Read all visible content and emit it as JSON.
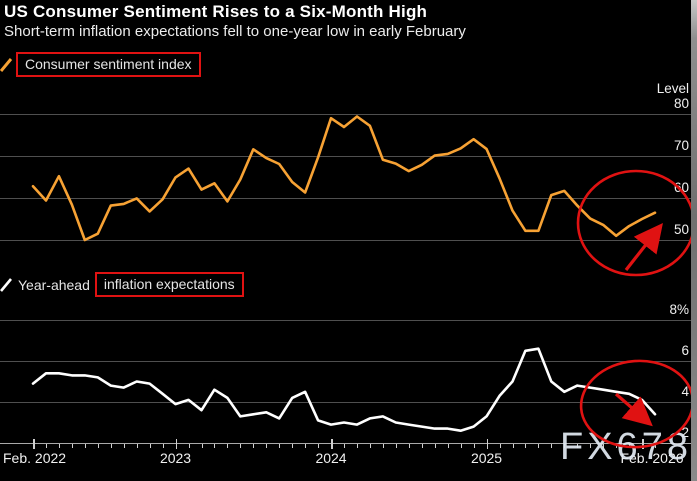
{
  "header": {
    "title": "US Consumer Sentiment Rises to a Six-Month High",
    "subtitle": "Short-term inflation expectations fell to one-year low in early February"
  },
  "legends": {
    "sentiment": "Consumer sentiment index",
    "inflation_prefix": "Year-ahead",
    "inflation_boxed": "inflation expectations"
  },
  "watermark": "FX678",
  "colors": {
    "background": "#000000",
    "sentiment_line": "#F7A234",
    "inflation_line": "#FFFFFF",
    "annotation_red": "#E01212",
    "gridline": "#4F4F4F",
    "text": "#FFFFFF",
    "watermark": "#E2EAF3"
  },
  "axis": {
    "x_labels": [
      "Feb. 2022",
      "2023",
      "2024",
      "2025",
      "Feb. 2026"
    ],
    "x_range": [
      "Feb 2022",
      "Feb 2026"
    ],
    "frequency": "monthly"
  },
  "chart_data": [
    {
      "type": "line",
      "name": "Consumer sentiment index",
      "ylabel": "Level",
      "color": "#F7A234",
      "ylim": [
        45,
        82
      ],
      "yticks": [
        80,
        70,
        60,
        50
      ],
      "ytick_labels": [
        "80",
        "70",
        "60",
        "50"
      ],
      "grid": true,
      "legend_position": "top-left",
      "x": [
        "Feb 2022",
        "Mar 2022",
        "Apr 2022",
        "May 2022",
        "Jun 2022",
        "Jul 2022",
        "Aug 2022",
        "Sep 2022",
        "Oct 2022",
        "Nov 2022",
        "Dec 2022",
        "Jan 2023",
        "Feb 2023",
        "Mar 2023",
        "Apr 2023",
        "May 2023",
        "Jun 2023",
        "Jul 2023",
        "Aug 2023",
        "Sep 2023",
        "Oct 2023",
        "Nov 2023",
        "Dec 2023",
        "Jan 2024",
        "Feb 2024",
        "Mar 2024",
        "Apr 2024",
        "May 2024",
        "Jun 2024",
        "Jul 2024",
        "Aug 2024",
        "Sep 2024",
        "Oct 2024",
        "Nov 2024",
        "Dec 2024",
        "Jan 2025",
        "Feb 2025",
        "Mar 2025",
        "Apr 2025",
        "May 2025",
        "Jun 2025",
        "Jul 2025",
        "Aug 2025",
        "Sep 2025",
        "Oct 2025",
        "Nov 2025",
        "Dec 2025",
        "Jan 2026",
        "Feb 2026"
      ],
      "values": [
        62.8,
        59.4,
        65.2,
        58.4,
        50.0,
        51.5,
        58.2,
        58.6,
        59.9,
        56.8,
        59.7,
        64.9,
        67.0,
        62.0,
        63.5,
        59.2,
        64.4,
        71.6,
        69.5,
        68.1,
        63.8,
        61.3,
        69.7,
        79.0,
        76.9,
        79.4,
        77.2,
        69.1,
        68.2,
        66.4,
        67.9,
        70.1,
        70.5,
        71.8,
        74.0,
        71.7,
        64.7,
        57.0,
        52.2,
        52.2,
        60.7,
        61.7,
        58.2,
        55.1,
        53.6,
        51.0,
        53.3,
        55.0,
        56.5
      ]
    },
    {
      "type": "line",
      "name": "Year-ahead inflation expectations",
      "ylabel": "%",
      "color": "#FFFFFF",
      "ylim": [
        2,
        8.5
      ],
      "yticks": [
        8,
        6,
        4,
        2
      ],
      "ytick_labels": [
        "8%",
        "6",
        "4",
        "2"
      ],
      "grid": true,
      "legend_position": "top-left",
      "x": [
        "Feb 2022",
        "Mar 2022",
        "Apr 2022",
        "May 2022",
        "Jun 2022",
        "Jul 2022",
        "Aug 2022",
        "Sep 2022",
        "Oct 2022",
        "Nov 2022",
        "Dec 2022",
        "Jan 2023",
        "Feb 2023",
        "Mar 2023",
        "Apr 2023",
        "May 2023",
        "Jun 2023",
        "Jul 2023",
        "Aug 2023",
        "Sep 2023",
        "Oct 2023",
        "Nov 2023",
        "Dec 2023",
        "Jan 2024",
        "Feb 2024",
        "Mar 2024",
        "Apr 2024",
        "May 2024",
        "Jun 2024",
        "Jul 2024",
        "Aug 2024",
        "Sep 2024",
        "Oct 2024",
        "Nov 2024",
        "Dec 2024",
        "Jan 2025",
        "Feb 2025",
        "Mar 2025",
        "Apr 2025",
        "May 2025",
        "Jun 2025",
        "Jul 2025",
        "Aug 2025",
        "Sep 2025",
        "Oct 2025",
        "Nov 2025",
        "Dec 2025",
        "Jan 2026",
        "Feb 2026"
      ],
      "values": [
        4.9,
        5.4,
        5.4,
        5.3,
        5.3,
        5.2,
        4.8,
        4.7,
        5.0,
        4.9,
        4.4,
        3.9,
        4.1,
        3.6,
        4.6,
        4.2,
        3.3,
        3.4,
        3.5,
        3.2,
        4.2,
        4.5,
        3.1,
        2.9,
        3.0,
        2.9,
        3.2,
        3.3,
        3.0,
        2.9,
        2.8,
        2.7,
        2.7,
        2.6,
        2.8,
        3.3,
        4.3,
        5.0,
        6.5,
        6.6,
        5.0,
        4.5,
        4.8,
        4.7,
        4.6,
        4.5,
        4.4,
        4.1,
        3.4
      ]
    }
  ],
  "annotations": [
    {
      "type": "red-box",
      "around": "Consumer sentiment index"
    },
    {
      "type": "red-box",
      "around": "inflation expectations"
    },
    {
      "type": "red-ellipse",
      "around": "late-2025 trough and early-2026 rebound of sentiment line"
    },
    {
      "type": "red-arrow",
      "direction": "up-right",
      "meaning": "sentiment rising at end of series"
    },
    {
      "type": "red-ellipse",
      "around": "late-2025 / early-2026 decline of inflation expectations line"
    },
    {
      "type": "red-arrow",
      "direction": "down-right",
      "meaning": "inflation expectations falling at end of series"
    }
  ]
}
